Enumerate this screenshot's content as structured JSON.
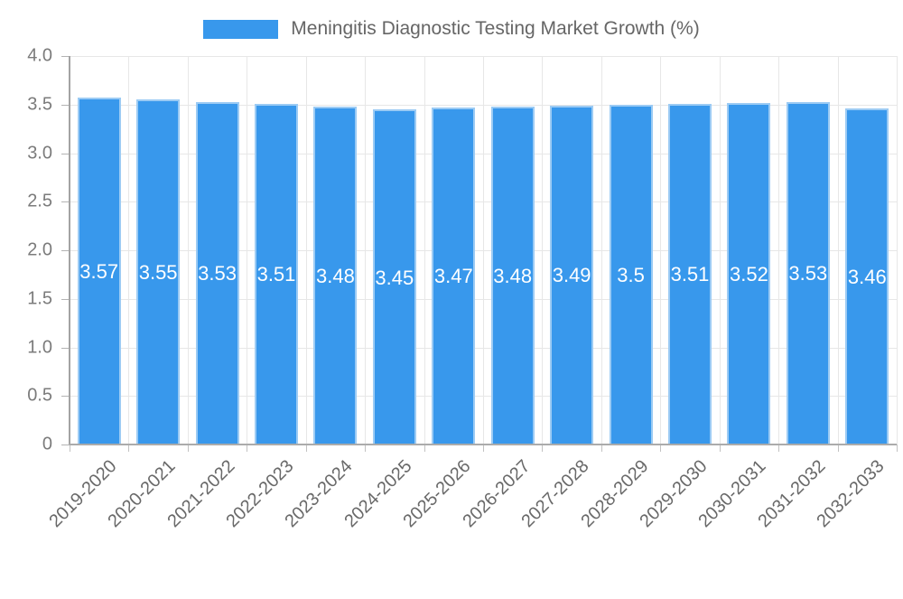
{
  "chart_data": {
    "type": "bar",
    "title": "Meningitis Diagnostic Testing Market Growth (%)",
    "xlabel": "",
    "ylabel": "",
    "categories": [
      "2019-2020",
      "2020-2021",
      "2021-2022",
      "2022-2023",
      "2023-2024",
      "2024-2025",
      "2025-2026",
      "2026-2027",
      "2027-2028",
      "2028-2029",
      "2029-2030",
      "2030-2031",
      "2031-2032",
      "2032-2033"
    ],
    "values": [
      3.57,
      3.55,
      3.53,
      3.51,
      3.48,
      3.45,
      3.47,
      3.48,
      3.49,
      3.5,
      3.51,
      3.52,
      3.53,
      3.46
    ],
    "value_labels": [
      "3.57",
      "3.55",
      "3.53",
      "3.51",
      "3.48",
      "3.45",
      "3.47",
      "3.48",
      "3.49",
      "3.5",
      "3.51",
      "3.52",
      "3.53",
      "3.46"
    ],
    "ylim": [
      0,
      4
    ],
    "ytick_step": 0.5,
    "ytick_labels": [
      "0",
      "0.5",
      "1.0",
      "1.5",
      "2.0",
      "2.5",
      "3.0",
      "3.5",
      "4.0"
    ],
    "grid": true,
    "legend_position": "top",
    "colors": {
      "bar": "#3898ec",
      "bar_border": "#9ccbf4",
      "value_text": "#ffffff",
      "grid": "#e7e7e7",
      "axis": "#ababab",
      "tick_text": "#7b7b7b",
      "legend_text": "#666666",
      "background": "#ffffff"
    }
  }
}
